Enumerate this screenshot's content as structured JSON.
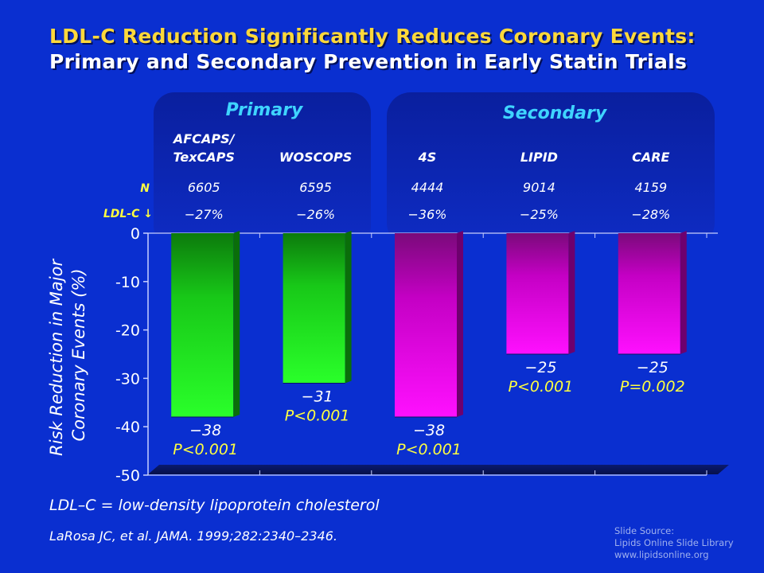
{
  "title_line1": "LDL-C Reduction Significantly Reduces Coronary Events:",
  "title_line2": "Primary and Secondary Prevention in Early Statin Trials",
  "footnote": "LDL–C = low-density lipoprotein cholesterol",
  "reference": "LaRosa JC, et al. JAMA. 1999;282:2340–2346.",
  "source": {
    "line1": "Slide Source:",
    "line2": "Lipids Online Slide Library",
    "line3": "www.lipidsonline.org"
  },
  "colors": {
    "background": "#0a2fd0",
    "panel": "#0c22a8",
    "primary_bar": "#22ff22",
    "secondary_bar": "#f000f0",
    "title_yellow": "#ffd83a",
    "group_label": "#3fd4ff",
    "annotation_yellow": "#ffff40"
  },
  "chart_data": {
    "type": "bar",
    "ylabel": "Risk Reduction in Major Coronary Events (%)",
    "ylim": [
      -50,
      0
    ],
    "yticks": [
      "0",
      "-10",
      "-20",
      "-30",
      "-40",
      "-50"
    ],
    "groups": [
      {
        "name": "Primary",
        "categories": [
          "AFCAPS/ TexCAPS",
          "WOSCOPS"
        ]
      },
      {
        "name": "Secondary",
        "categories": [
          "4S",
          "LIPID",
          "CARE"
        ]
      }
    ],
    "row_labels": {
      "n": "N",
      "ldl": "LDL-C ↓"
    },
    "bars": [
      {
        "study_line1": "AFCAPS/",
        "study_line2": "TexCAPS",
        "group": "Primary",
        "n": "6605",
        "ldl_change": "−27%",
        "value": -38,
        "value_label": "−38",
        "p_label": "P<0.001"
      },
      {
        "study_line1": "WOSCOPS",
        "study_line2": "",
        "group": "Primary",
        "n": "6595",
        "ldl_change": "−26%",
        "value": -31,
        "value_label": "−31",
        "p_label": "P<0.001"
      },
      {
        "study_line1": "4S",
        "study_line2": "",
        "group": "Secondary",
        "n": "4444",
        "ldl_change": "−36%",
        "value": -38,
        "value_label": "−38",
        "p_label": "P<0.001"
      },
      {
        "study_line1": "LIPID",
        "study_line2": "",
        "group": "Secondary",
        "n": "9014",
        "ldl_change": "−25%",
        "value": -25,
        "value_label": "−25",
        "p_label": "P<0.001"
      },
      {
        "study_line1": "CARE",
        "study_line2": "",
        "group": "Secondary",
        "n": "4159",
        "ldl_change": "−28%",
        "value": -25,
        "value_label": "−25",
        "p_label": "P=0.002"
      }
    ]
  }
}
